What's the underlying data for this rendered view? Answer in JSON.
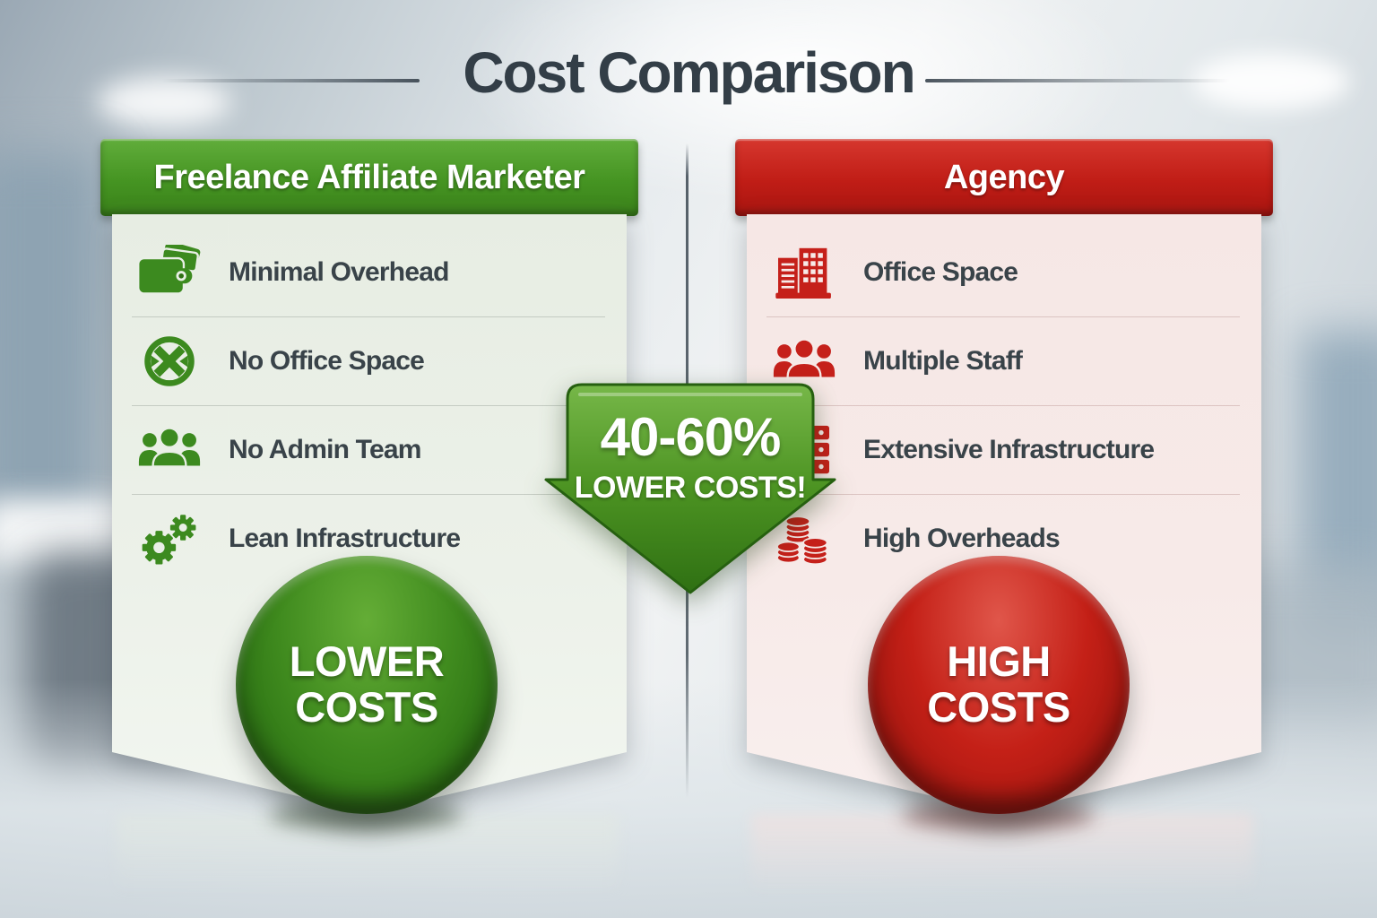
{
  "title": "Cost Comparison",
  "colors": {
    "accent_green": "#3f8a1e",
    "accent_red": "#c01d16",
    "text_dark": "#394349"
  },
  "center": {
    "arrow_icon": "down-arrow-icon",
    "arrow_line1": "40-60%",
    "arrow_line2": "LOWER COSTS!"
  },
  "left_panel": {
    "header": "Freelance Affiliate Marketer",
    "items": [
      {
        "icon": "wallet-icon",
        "label": "Minimal Overhead"
      },
      {
        "icon": "no-office-icon",
        "label": "No Office Space"
      },
      {
        "icon": "no-admin-team-icon",
        "label": "No Admin Team"
      },
      {
        "icon": "gears-icon",
        "label": "Lean Infrastructure"
      }
    ],
    "badge": {
      "line1": "LOWER",
      "line2": "COSTS"
    }
  },
  "right_panel": {
    "header": "Agency",
    "items": [
      {
        "icon": "office-building-icon",
        "label": "Office Space"
      },
      {
        "icon": "multiple-staff-icon",
        "label": "Multiple Staff"
      },
      {
        "icon": "server-stack-icon",
        "label": "Extensive Infrastructure"
      },
      {
        "icon": "coin-stacks-icon",
        "label": "High Overheads"
      }
    ],
    "badge": {
      "line1": "HIGH",
      "line2": "COSTS"
    }
  }
}
